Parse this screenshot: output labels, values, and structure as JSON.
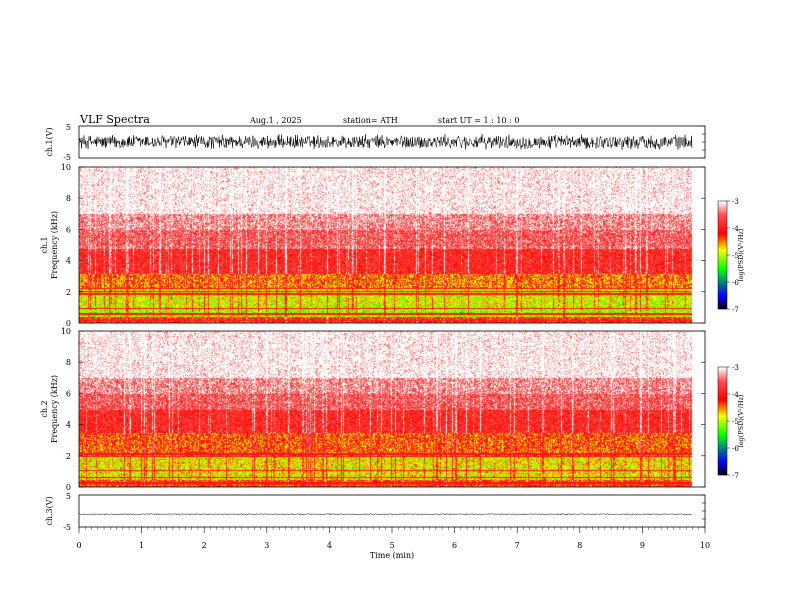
{
  "header": {
    "title": "VLF  Spectra",
    "date": "Aug.1  , 2025",
    "station": "station= ATH",
    "start_ut": "start  UT  =    1  : 10 : 0"
  },
  "chart_data": [
    {
      "type": "line",
      "name": "ch1-waveform",
      "ylabel": "ch.1(V)",
      "yticks": [
        "5",
        "-5"
      ],
      "ylim": [
        -5,
        5
      ],
      "xlim": [
        0,
        10
      ],
      "data_end": 9.8,
      "amplitude": 2.5,
      "color": "#000000"
    },
    {
      "type": "heatmap",
      "name": "ch1-spectrogram",
      "ylabel_top": "ch.1",
      "ylabel": "Frequency  (kHz)",
      "ylim": [
        0,
        10
      ],
      "yticks": [
        "0",
        "2",
        "4",
        "6",
        "8",
        "10"
      ],
      "xlim": [
        0,
        10
      ],
      "data_end": 9.8,
      "colorbar": {
        "label": "log(PSD)(V²/Hz)",
        "ticks": [
          "-3",
          "-4",
          "-5",
          "-6",
          "-7"
        ],
        "range": [
          -7,
          -3
        ]
      },
      "bands": [
        {
          "fmin": 0.0,
          "fmax": 0.4,
          "level": -4.3
        },
        {
          "fmin": 0.4,
          "fmax": 1.0,
          "level": -5.2
        },
        {
          "fmin": 1.0,
          "fmax": 2.2,
          "level": -5.0
        },
        {
          "fmin": 2.2,
          "fmax": 3.2,
          "level": -4.6
        },
        {
          "fmin": 3.2,
          "fmax": 4.8,
          "level": -4.0
        },
        {
          "fmin": 4.8,
          "fmax": 7.0,
          "level": -3.6
        },
        {
          "fmin": 7.0,
          "fmax": 10.0,
          "level": -3.2
        }
      ],
      "lines_khz": [
        0.2,
        0.6,
        0.95,
        1.9,
        2.05,
        2.25
      ]
    },
    {
      "type": "heatmap",
      "name": "ch2-spectrogram",
      "ylabel_top": "ch.2",
      "ylabel": "Frequency  (kHz)",
      "ylim": [
        0,
        10
      ],
      "yticks": [
        "0",
        "2",
        "4",
        "6",
        "8",
        "10"
      ],
      "xlim": [
        0,
        10
      ],
      "data_end": 9.8,
      "colorbar": {
        "label": "log(PSD)(V²/Hz)",
        "ticks": [
          "-3",
          "-4",
          "-5",
          "-6",
          "-7"
        ],
        "range": [
          -7,
          -3
        ]
      },
      "bands": [
        {
          "fmin": 0.0,
          "fmax": 0.5,
          "level": -4.4
        },
        {
          "fmin": 0.5,
          "fmax": 2.0,
          "level": -4.9
        },
        {
          "fmin": 2.0,
          "fmax": 3.5,
          "level": -4.5
        },
        {
          "fmin": 3.5,
          "fmax": 5.0,
          "level": -4.0
        },
        {
          "fmin": 5.0,
          "fmax": 7.0,
          "level": -3.6
        },
        {
          "fmin": 7.0,
          "fmax": 10.0,
          "level": -3.2
        }
      ],
      "lines_khz": [
        0.3,
        0.65,
        1.1,
        2.0,
        2.15
      ]
    },
    {
      "type": "line",
      "name": "ch3-waveform",
      "ylabel": "ch.3(V)",
      "yticks": [
        "5",
        "-5"
      ],
      "ylim": [
        -5,
        5
      ],
      "xlim": [
        0,
        10
      ],
      "data_end": 9.8,
      "offset": -1.0,
      "amplitude": 0.2,
      "color": "#000000"
    }
  ],
  "x_axis": {
    "label": "Time  (min)",
    "ticks": [
      "0",
      "1",
      "2",
      "3",
      "4",
      "5",
      "6",
      "7",
      "8",
      "9",
      "10"
    ],
    "range": [
      0,
      10
    ]
  },
  "colors": {
    "low": "#0000ff",
    "mid": "#00ff00",
    "highmid": "#ffff00",
    "high": "#ff0000",
    "max": "#ffffff"
  }
}
